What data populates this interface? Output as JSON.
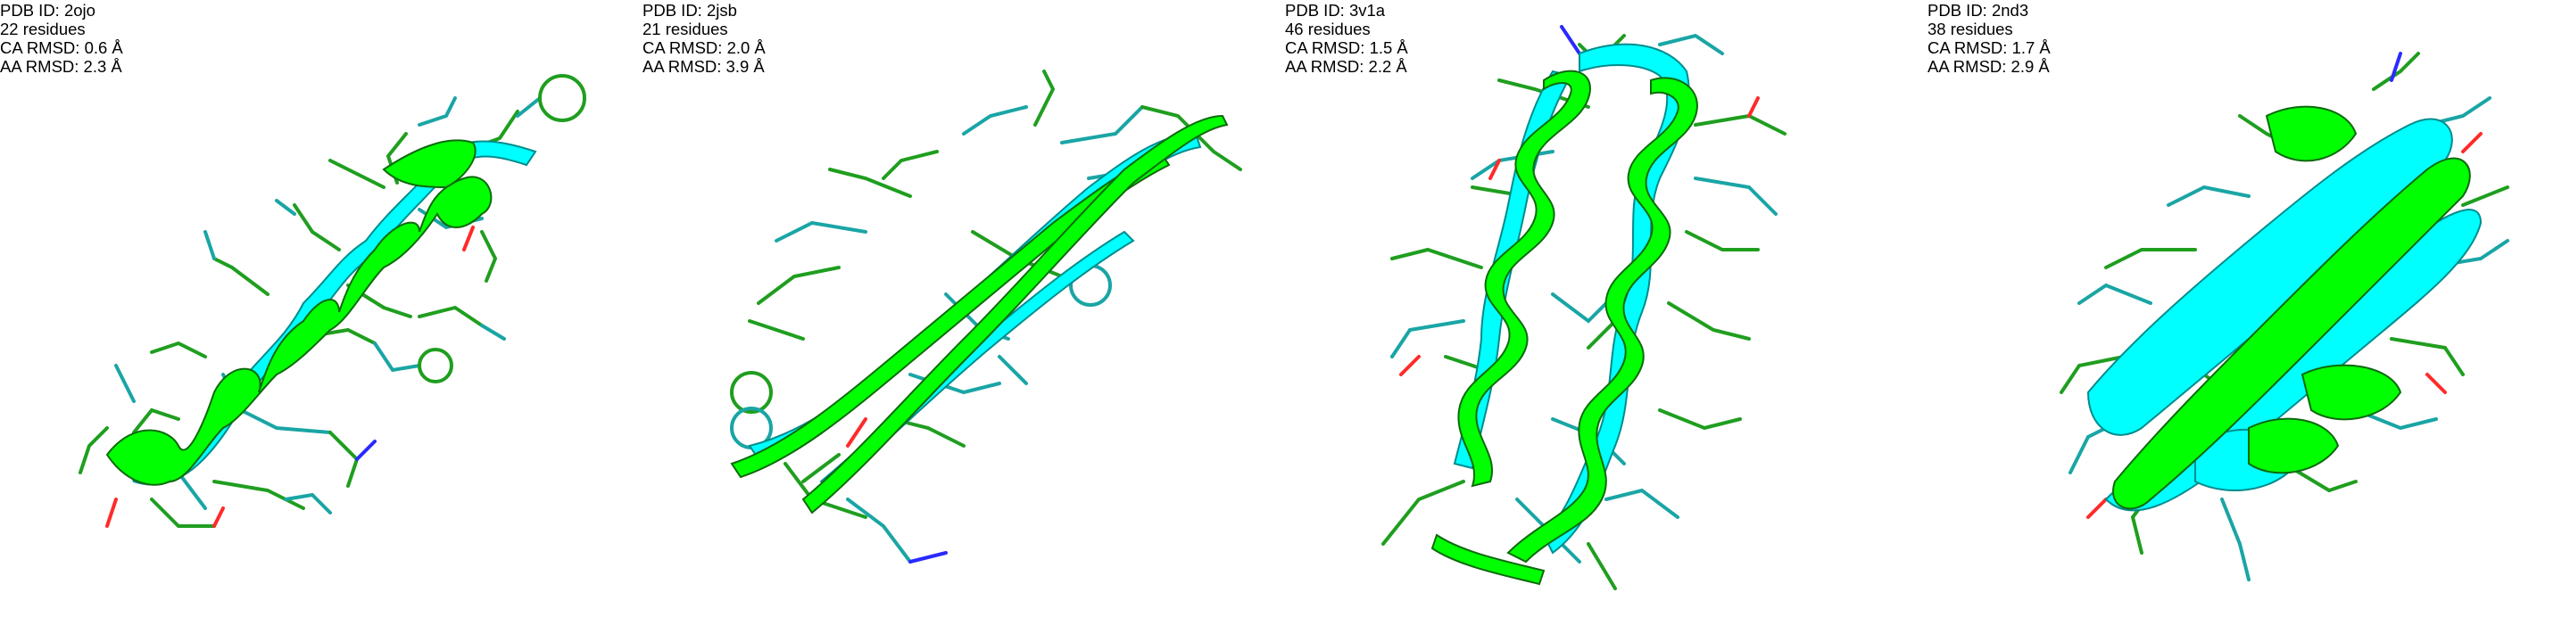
{
  "colors": {
    "predicted": "#00ff00",
    "predicted_dark": "#1f9e1f",
    "reference": "#00ffff",
    "reference_dark": "#1aa5a5",
    "oxygen": "#ff2a2a",
    "nitrogen": "#2a2aff",
    "text": "#000000"
  },
  "panels": [
    {
      "pdb_id": "PDB ID: 2ojo",
      "residues": "22 residues",
      "ca_rmsd": "CA RMSD: 0.6 Å",
      "aa_rmsd": "AA RMSD: 2.3 Å",
      "fold": "single-helix"
    },
    {
      "pdb_id": "PDB ID: 2jsb",
      "residues": "21 residues",
      "ca_rmsd": "CA RMSD: 2.0 Å",
      "aa_rmsd": "AA RMSD: 3.9 Å",
      "fold": "beta-hairpin"
    },
    {
      "pdb_id": "PDB ID: 3v1a",
      "residues": "46 residues",
      "ca_rmsd": "CA RMSD: 1.5 Å",
      "aa_rmsd": "AA RMSD: 2.2 Å",
      "fold": "helix-hairpin"
    },
    {
      "pdb_id": "PDB ID: 2nd3",
      "residues": "38 residues",
      "ca_rmsd": "CA RMSD: 1.7 Å",
      "aa_rmsd": "AA RMSD: 2.9 Å",
      "fold": "mixed-alpha-beta"
    }
  ]
}
